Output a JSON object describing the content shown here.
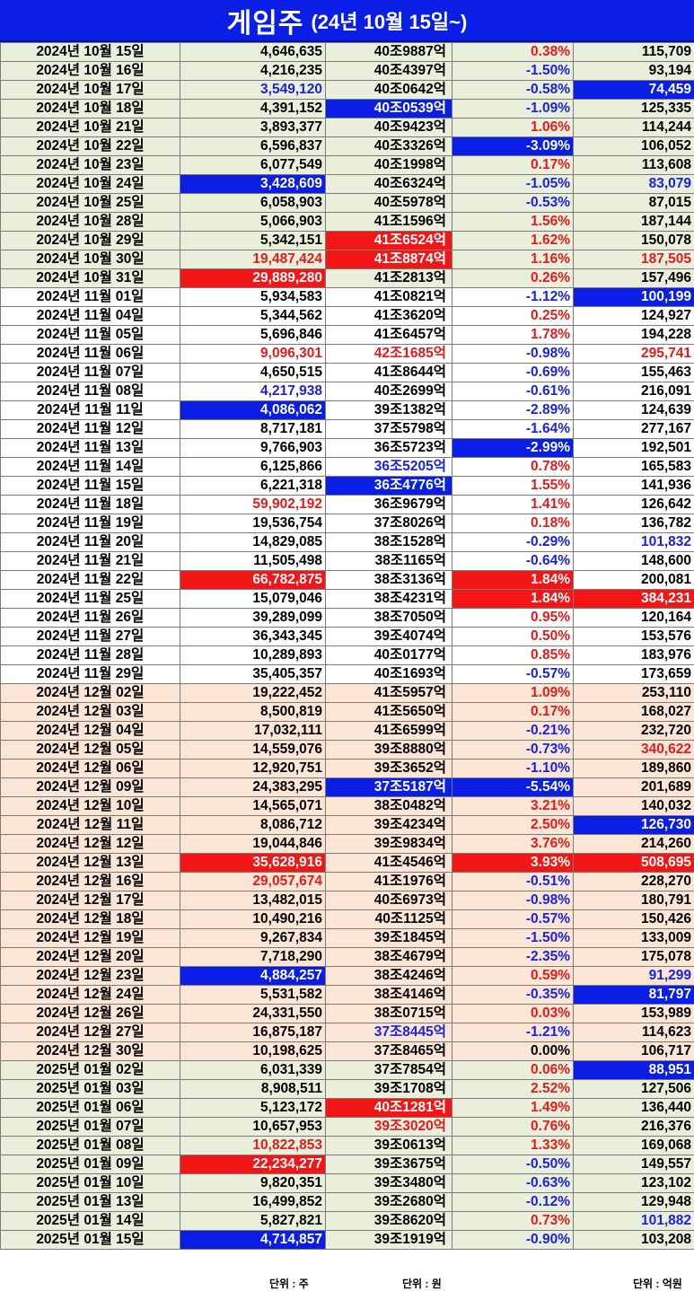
{
  "title": {
    "main": "게임주",
    "sub": "(24년 10월 15일~)"
  },
  "units": {
    "volume": "단위 : 주",
    "cap": "단위 : 원",
    "amount": "단위 : 억원"
  },
  "rows": [
    {
      "date": "2024년 10월 15일",
      "vol": "4,646,635",
      "cap": "40조9887억",
      "chg": "0.38%",
      "amt": "115,709",
      "g": 1
    },
    {
      "date": "2024년 10월 16일",
      "vol": "4,216,235",
      "cap": "40조4397억",
      "chg": "-1.50%",
      "amt": "93,194",
      "g": 1
    },
    {
      "date": "2024년 10월 17일",
      "vol": "3,549,120",
      "cap": "40조0642억",
      "chg": "-0.58%",
      "amt": "74,459",
      "g": 1,
      "vs": "blue",
      "as": "hl-blue"
    },
    {
      "date": "2024년 10월 18일",
      "vol": "4,391,152",
      "cap": "40조0539억",
      "chg": "-1.09%",
      "amt": "125,335",
      "g": 1,
      "cs": "hl-blue"
    },
    {
      "date": "2024년 10월 21일",
      "vol": "3,893,377",
      "cap": "40조9423억",
      "chg": "1.06%",
      "amt": "114,244",
      "g": 1
    },
    {
      "date": "2024년 10월 22일",
      "vol": "6,596,837",
      "cap": "40조3326억",
      "chg": "-3.09%",
      "amt": "106,052",
      "g": 1,
      "hs": "hl-blue"
    },
    {
      "date": "2024년 10월 23일",
      "vol": "6,077,549",
      "cap": "40조1998억",
      "chg": "0.17%",
      "amt": "113,608",
      "g": 1
    },
    {
      "date": "2024년 10월 24일",
      "vol": "3,428,609",
      "cap": "40조6324억",
      "chg": "-1.05%",
      "amt": "83,079",
      "g": 1,
      "vs": "hl-blue",
      "as": "blue"
    },
    {
      "date": "2024년 10월 25일",
      "vol": "6,058,903",
      "cap": "40조5978억",
      "chg": "-0.53%",
      "amt": "87,015",
      "g": 1
    },
    {
      "date": "2024년 10월 28일",
      "vol": "5,066,903",
      "cap": "41조1596억",
      "chg": "1.56%",
      "amt": "187,144",
      "g": 1
    },
    {
      "date": "2024년 10월 29일",
      "vol": "5,342,151",
      "cap": "41조6524억",
      "chg": "1.62%",
      "amt": "150,078",
      "g": 1,
      "cs": "hl-red"
    },
    {
      "date": "2024년 10월 30일",
      "vol": "19,487,424",
      "cap": "41조8874억",
      "chg": "1.16%",
      "amt": "187,505",
      "g": 1,
      "vs": "red",
      "cs": "hl-red",
      "as": "red"
    },
    {
      "date": "2024년 10월 31일",
      "vol": "29,889,280",
      "cap": "41조2813억",
      "chg": "0.26%",
      "amt": "157,496",
      "g": 1,
      "vs": "hl-red"
    },
    {
      "date": "2024년 11월 01일",
      "vol": "5,934,583",
      "cap": "41조0821억",
      "chg": "-1.12%",
      "amt": "100,199",
      "g": 2,
      "as": "hl-blue"
    },
    {
      "date": "2024년 11월 04일",
      "vol": "5,344,562",
      "cap": "41조3620억",
      "chg": "0.25%",
      "amt": "124,927",
      "g": 2
    },
    {
      "date": "2024년 11월 05일",
      "vol": "5,696,846",
      "cap": "41조6457억",
      "chg": "1.78%",
      "amt": "194,228",
      "g": 2
    },
    {
      "date": "2024년 11월 06일",
      "vol": "9,096,301",
      "cap": "42조1685억",
      "chg": "-0.98%",
      "amt": "295,741",
      "g": 2,
      "vs": "red",
      "cs": "red",
      "as": "red"
    },
    {
      "date": "2024년 11월 07일",
      "vol": "4,650,515",
      "cap": "41조8644억",
      "chg": "-0.69%",
      "amt": "155,463",
      "g": 2
    },
    {
      "date": "2024년 11월 08일",
      "vol": "4,217,938",
      "cap": "40조2699억",
      "chg": "-0.61%",
      "amt": "216,091",
      "g": 2,
      "vs": "blue"
    },
    {
      "date": "2024년 11월 11일",
      "vol": "4,086,062",
      "cap": "39조1382억",
      "chg": "-2.89%",
      "amt": "124,639",
      "g": 2,
      "vs": "hl-blue"
    },
    {
      "date": "2024년 11월 12일",
      "vol": "8,717,181",
      "cap": "37조5798억",
      "chg": "-1.64%",
      "amt": "277,167",
      "g": 2
    },
    {
      "date": "2024년 11월 13일",
      "vol": "9,766,903",
      "cap": "36조5723억",
      "chg": "-2.99%",
      "amt": "192,501",
      "g": 2,
      "hs": "hl-blue"
    },
    {
      "date": "2024년 11월 14일",
      "vol": "6,125,866",
      "cap": "36조5205억",
      "chg": "0.78%",
      "amt": "165,583",
      "g": 2,
      "cs": "blue"
    },
    {
      "date": "2024년 11월 15일",
      "vol": "6,221,318",
      "cap": "36조4776억",
      "chg": "1.55%",
      "amt": "141,936",
      "g": 2,
      "cs": "hl-blue"
    },
    {
      "date": "2024년 11월 18일",
      "vol": "59,902,192",
      "cap": "36조9679억",
      "chg": "1.41%",
      "amt": "126,642",
      "g": 2,
      "vs": "red"
    },
    {
      "date": "2024년 11월 19일",
      "vol": "19,536,754",
      "cap": "37조8026억",
      "chg": "0.18%",
      "amt": "136,782",
      "g": 2
    },
    {
      "date": "2024년 11월 20일",
      "vol": "14,829,085",
      "cap": "38조1528억",
      "chg": "-0.29%",
      "amt": "101,832",
      "g": 2,
      "as": "blue"
    },
    {
      "date": "2024년 11월 21일",
      "vol": "11,505,498",
      "cap": "38조1165억",
      "chg": "-0.64%",
      "amt": "148,600",
      "g": 2
    },
    {
      "date": "2024년 11월 22일",
      "vol": "66,782,875",
      "cap": "38조3136억",
      "chg": "1.84%",
      "amt": "200,081",
      "g": 2,
      "vs": "hl-red",
      "hs": "hl-red"
    },
    {
      "date": "2024년 11월 25일",
      "vol": "15,079,046",
      "cap": "38조4231억",
      "chg": "1.84%",
      "amt": "384,231",
      "g": 2,
      "hs": "hl-red",
      "as": "hl-red"
    },
    {
      "date": "2024년 11월 26일",
      "vol": "39,289,099",
      "cap": "38조7050억",
      "chg": "0.95%",
      "amt": "120,164",
      "g": 2
    },
    {
      "date": "2024년 11월 27일",
      "vol": "36,343,345",
      "cap": "39조4074억",
      "chg": "0.50%",
      "amt": "153,576",
      "g": 2
    },
    {
      "date": "2024년 11월 28일",
      "vol": "10,289,893",
      "cap": "40조0177억",
      "chg": "0.85%",
      "amt": "183,976",
      "g": 2
    },
    {
      "date": "2024년 11월 29일",
      "vol": "35,405,357",
      "cap": "40조1693억",
      "chg": "-0.57%",
      "amt": "173,659",
      "g": 2
    },
    {
      "date": "2024년 12월 02일",
      "vol": "19,222,452",
      "cap": "41조5957억",
      "chg": "1.09%",
      "amt": "253,110",
      "g": 3
    },
    {
      "date": "2024년 12월 03일",
      "vol": "8,500,819",
      "cap": "41조5650억",
      "chg": "0.17%",
      "amt": "168,027",
      "g": 3
    },
    {
      "date": "2024년 12월 04일",
      "vol": "17,032,111",
      "cap": "41조6599억",
      "chg": "-0.21%",
      "amt": "232,720",
      "g": 3
    },
    {
      "date": "2024년 12월 05일",
      "vol": "14,559,076",
      "cap": "39조8880억",
      "chg": "-0.73%",
      "amt": "340,622",
      "g": 3,
      "as": "red"
    },
    {
      "date": "2024년 12월 06일",
      "vol": "12,920,751",
      "cap": "39조3652억",
      "chg": "-1.10%",
      "amt": "189,860",
      "g": 3
    },
    {
      "date": "2024년 12월 09일",
      "vol": "24,383,295",
      "cap": "37조5187억",
      "chg": "-5.54%",
      "amt": "201,689",
      "g": 3,
      "cs": "hl-blue",
      "hs": "hl-blue"
    },
    {
      "date": "2024년 12월 10일",
      "vol": "14,565,071",
      "cap": "38조0482억",
      "chg": "3.21%",
      "amt": "140,032",
      "g": 3
    },
    {
      "date": "2024년 12월 11일",
      "vol": "8,086,712",
      "cap": "39조4234억",
      "chg": "2.50%",
      "amt": "126,730",
      "g": 3,
      "as": "hl-blue"
    },
    {
      "date": "2024년 12월 12일",
      "vol": "19,044,846",
      "cap": "39조9834억",
      "chg": "3.76%",
      "amt": "214,260",
      "g": 3
    },
    {
      "date": "2024년 12월 13일",
      "vol": "35,628,916",
      "cap": "41조4546억",
      "chg": "3.93%",
      "amt": "508,695",
      "g": 3,
      "vs": "hl-red",
      "hs": "hl-red",
      "as": "hl-red"
    },
    {
      "date": "2024년 12월 16일",
      "vol": "29,057,674",
      "cap": "41조1976억",
      "chg": "-0.51%",
      "amt": "228,270",
      "g": 3,
      "vs": "red"
    },
    {
      "date": "2024년 12월 17일",
      "vol": "13,482,015",
      "cap": "40조6973억",
      "chg": "-0.98%",
      "amt": "180,791",
      "g": 3
    },
    {
      "date": "2024년 12월 18일",
      "vol": "10,490,216",
      "cap": "40조1125억",
      "chg": "-0.57%",
      "amt": "150,426",
      "g": 3
    },
    {
      "date": "2024년 12월 19일",
      "vol": "9,267,834",
      "cap": "39조1845억",
      "chg": "-1.50%",
      "amt": "133,009",
      "g": 3
    },
    {
      "date": "2024년 12월 20일",
      "vol": "7,718,290",
      "cap": "38조4679억",
      "chg": "-2.35%",
      "amt": "175,078",
      "g": 3
    },
    {
      "date": "2024년 12월 23일",
      "vol": "4,884,257",
      "cap": "38조4246억",
      "chg": "0.59%",
      "amt": "91,299",
      "g": 3,
      "vs": "hl-blue",
      "as": "blue"
    },
    {
      "date": "2024년 12월 24일",
      "vol": "5,531,582",
      "cap": "38조4146억",
      "chg": "-0.35%",
      "amt": "81,797",
      "g": 3,
      "as": "hl-blue"
    },
    {
      "date": "2024년 12월 26일",
      "vol": "24,331,550",
      "cap": "38조0715억",
      "chg": "0.03%",
      "amt": "153,989",
      "g": 3
    },
    {
      "date": "2024년 12월 27일",
      "vol": "16,875,187",
      "cap": "37조8445억",
      "chg": "-1.21%",
      "amt": "114,623",
      "g": 3,
      "cs": "blue"
    },
    {
      "date": "2024년 12월 30일",
      "vol": "10,198,625",
      "cap": "37조8465억",
      "chg": "0.00%",
      "amt": "106,717",
      "g": 3,
      "hs": "black"
    },
    {
      "date": "2025년 01월 02일",
      "vol": "6,031,339",
      "cap": "37조7854억",
      "chg": "0.06%",
      "amt": "88,951",
      "g": 4,
      "as": "hl-blue"
    },
    {
      "date": "2025년 01월 03일",
      "vol": "8,908,511",
      "cap": "39조1708억",
      "chg": "2.52%",
      "amt": "127,506",
      "g": 4
    },
    {
      "date": "2025년 01월 06일",
      "vol": "5,123,172",
      "cap": "40조1281억",
      "chg": "1.49%",
      "amt": "136,440",
      "g": 4,
      "cs": "hl-red"
    },
    {
      "date": "2025년 01월 07일",
      "vol": "10,657,953",
      "cap": "39조3020억",
      "chg": "0.76%",
      "amt": "216,376",
      "g": 4,
      "cs": "red"
    },
    {
      "date": "2025년 01월 08일",
      "vol": "10,822,853",
      "cap": "39조0613억",
      "chg": "1.33%",
      "amt": "169,068",
      "g": 4,
      "vs": "red"
    },
    {
      "date": "2025년 01월 09일",
      "vol": "22,234,277",
      "cap": "39조3675억",
      "chg": "-0.50%",
      "amt": "149,557",
      "g": 4,
      "vs": "hl-red"
    },
    {
      "date": "2025년 01월 10일",
      "vol": "9,820,351",
      "cap": "39조3480억",
      "chg": "-0.63%",
      "amt": "123,102",
      "g": 4
    },
    {
      "date": "2025년 01월 13일",
      "vol": "16,499,852",
      "cap": "39조2680억",
      "chg": "-0.12%",
      "amt": "129,948",
      "g": 4
    },
    {
      "date": "2025년 01월 14일",
      "vol": "5,827,821",
      "cap": "39조8620억",
      "chg": "0.73%",
      "amt": "101,882",
      "g": 4,
      "as": "blue"
    },
    {
      "date": "2025년 01월 15일",
      "vol": "4,714,857",
      "cap": "39조1919억",
      "chg": "-0.90%",
      "amt": "103,208",
      "g": 4,
      "vs": "hl-blue",
      "last": true
    }
  ],
  "colors": {
    "title_bg": "#0a1ee6",
    "highlight_blue": "#0a1ee6",
    "highlight_red": "#f21616",
    "text_red": "#e41b1b",
    "text_blue": "#1a22e0"
  }
}
